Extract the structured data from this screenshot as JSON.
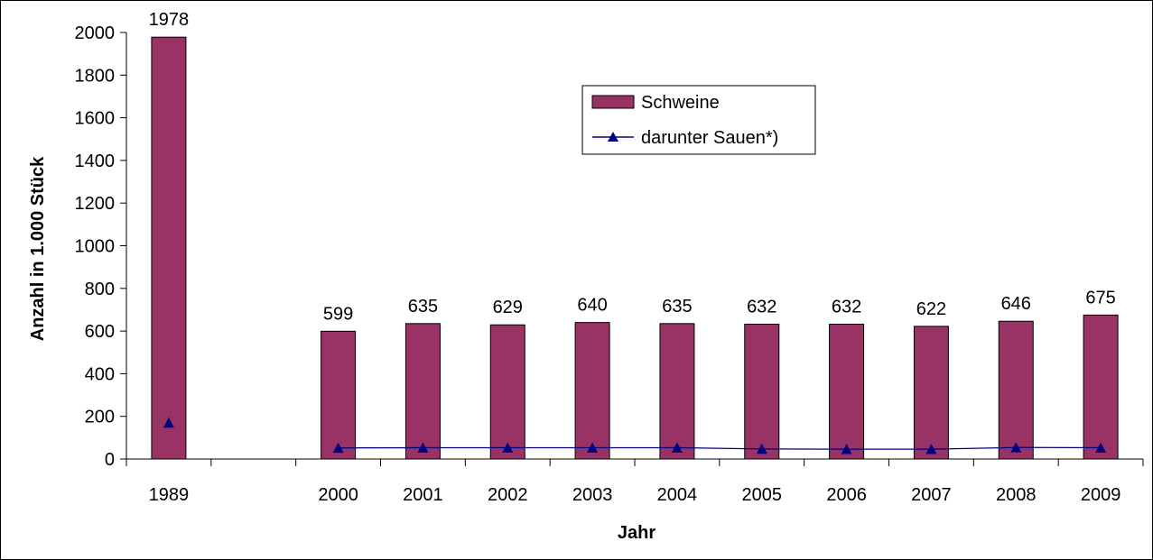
{
  "chart_data": {
    "type": "bar",
    "categories": [
      "1989",
      "",
      "2000",
      "2001",
      "2002",
      "2003",
      "2004",
      "2005",
      "2006",
      "2007",
      "2008",
      "2009"
    ],
    "series": [
      {
        "name": "Schweine",
        "kind": "bar",
        "values": [
          1978,
          null,
          599,
          635,
          629,
          640,
          635,
          632,
          632,
          622,
          646,
          675
        ],
        "data_labels": [
          "1978",
          "",
          "599",
          "635",
          "629",
          "640",
          "635",
          "632",
          "632",
          "622",
          "646",
          "675"
        ],
        "color": "#993366"
      },
      {
        "name": "darunter Sauen*)",
        "kind": "line",
        "marker": "triangle",
        "values": [
          170,
          null,
          52,
          53,
          53,
          53,
          53,
          47,
          46,
          46,
          54,
          53
        ],
        "color": "#000080"
      }
    ],
    "xlabel": "Jahr",
    "ylabel": "Anzahl in 1.000 Stück",
    "ylim": [
      0,
      2000
    ],
    "yticks": [
      "0",
      "200",
      "400",
      "600",
      "800",
      "1000",
      "1200",
      "1400",
      "1600",
      "1800",
      "2000"
    ],
    "grid": false,
    "legend_position": "top-center"
  }
}
